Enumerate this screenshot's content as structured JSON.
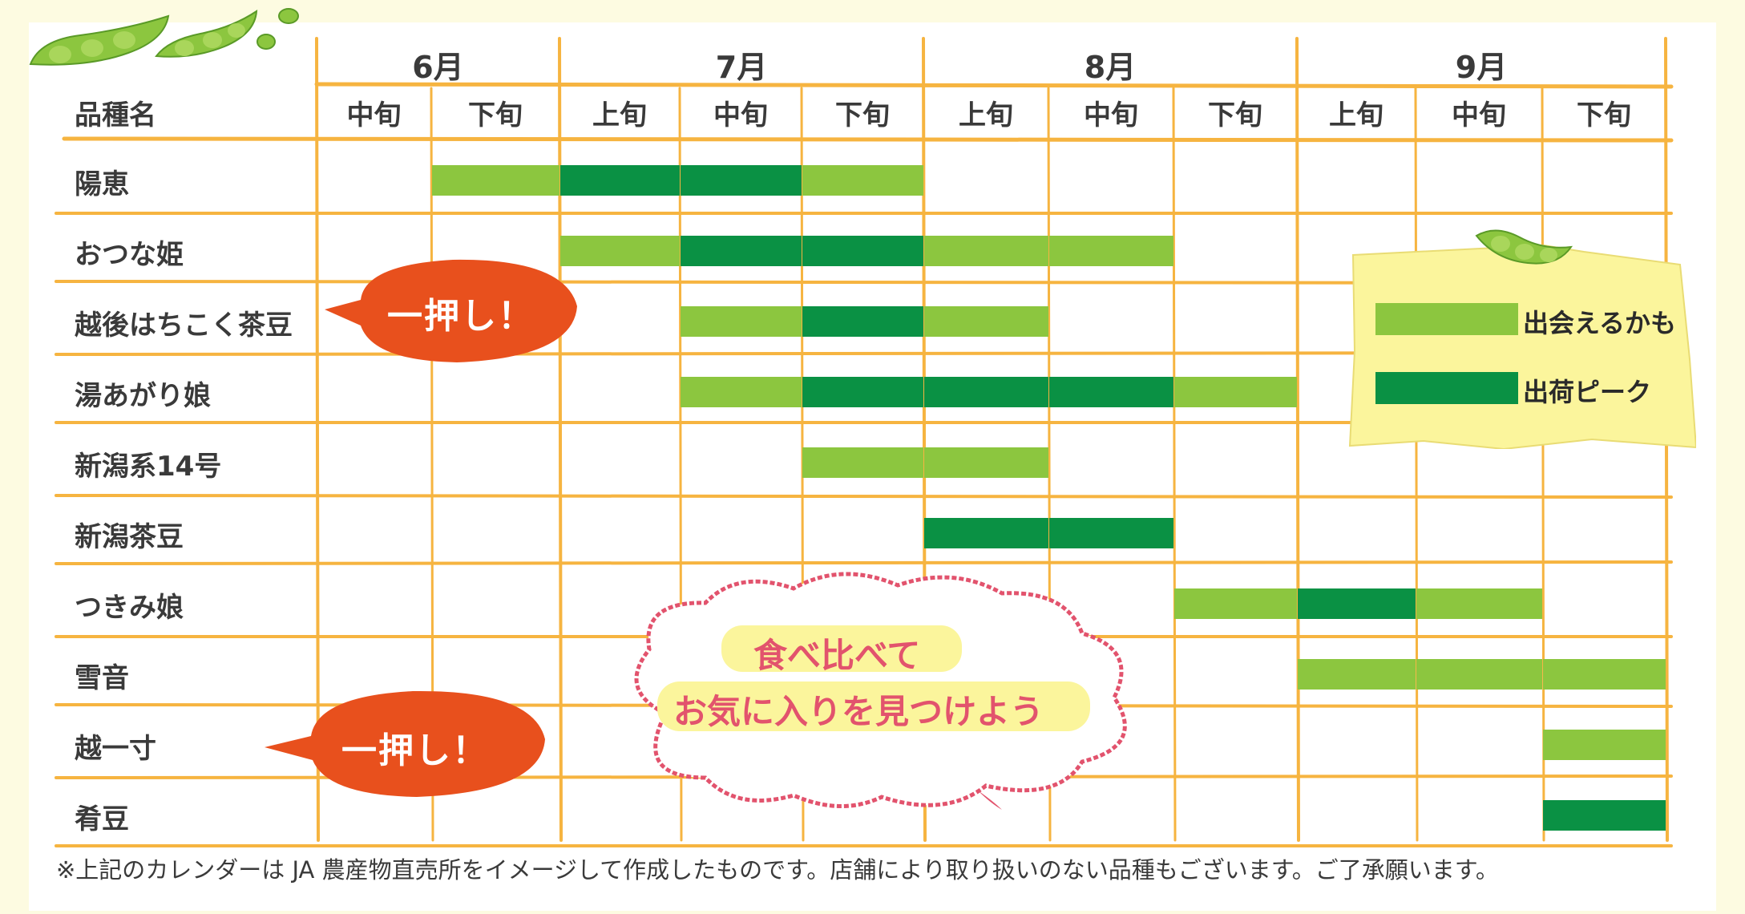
{
  "chart_data": {
    "type": "gantt",
    "months": [
      "6月",
      "7月",
      "8月",
      "9月"
    ],
    "decade_header": "品種名",
    "columns": [
      {
        "month": "6月",
        "decade": "中旬"
      },
      {
        "month": "6月",
        "decade": "下旬"
      },
      {
        "month": "7月",
        "decade": "上旬"
      },
      {
        "month": "7月",
        "decade": "中旬"
      },
      {
        "month": "7月",
        "decade": "下旬"
      },
      {
        "month": "8月",
        "decade": "上旬"
      },
      {
        "month": "8月",
        "decade": "中旬"
      },
      {
        "month": "8月",
        "decade": "下旬"
      },
      {
        "month": "9月",
        "decade": "上旬"
      },
      {
        "month": "9月",
        "decade": "中旬"
      },
      {
        "month": "9月",
        "decade": "下旬"
      }
    ],
    "rows": [
      {
        "variety": "陽恵",
        "cells": [
          0,
          1,
          2,
          2,
          1,
          0,
          0,
          0,
          0,
          0,
          0
        ]
      },
      {
        "variety": "おつな姫",
        "cells": [
          0,
          0,
          1,
          2,
          2,
          1,
          1,
          0,
          0,
          0,
          0
        ]
      },
      {
        "variety": "越後はちこく茶豆",
        "cells": [
          0,
          0,
          0,
          1,
          2,
          1,
          0,
          0,
          0,
          0,
          0
        ]
      },
      {
        "variety": "湯あがり娘",
        "cells": [
          0,
          0,
          0,
          1,
          2,
          2,
          2,
          1,
          0,
          0,
          0
        ]
      },
      {
        "variety": "新潟系14号",
        "cells": [
          0,
          0,
          0,
          0,
          1,
          1,
          0,
          0,
          0,
          0,
          0
        ]
      },
      {
        "variety": "新潟茶豆",
        "cells": [
          0,
          0,
          0,
          0,
          0,
          2,
          2,
          0,
          0,
          0,
          0
        ]
      },
      {
        "variety": "つきみ娘",
        "cells": [
          0,
          0,
          0,
          0,
          0,
          0,
          0,
          1,
          2,
          1,
          0
        ]
      },
      {
        "variety": "雪音",
        "cells": [
          0,
          0,
          0,
          0,
          0,
          0,
          0,
          0,
          1,
          1,
          1
        ]
      },
      {
        "variety": "越一寸",
        "cells": [
          0,
          0,
          0,
          0,
          0,
          0,
          0,
          0,
          0,
          0,
          1
        ]
      },
      {
        "variety": "肴豆",
        "cells": [
          0,
          0,
          0,
          0,
          0,
          0,
          0,
          0,
          0,
          0,
          2
        ]
      }
    ],
    "legend": [
      {
        "level": 1,
        "label": "出会えるかも",
        "color": "#8cc63f"
      },
      {
        "level": 2,
        "label": "出荷ピーク",
        "color": "#0a9144"
      }
    ]
  },
  "callouts": {
    "recommend_1": "一押し！",
    "recommend_2": "一押し！",
    "cloud_line1": "食べ比べて",
    "cloud_line2": "お気に入りを見つけよう"
  },
  "footnote": "※上記のカレンダーは JA 農産物直売所をイメージして作成したものです。店舗により取り扱いのない品種もございます。ご了承願います。",
  "colors": {
    "light_green": "#8cc63f",
    "dark_green": "#0a9144",
    "grid": "#f6b440",
    "bubble": "#e8501d",
    "cloud_border": "#e2536d",
    "sticky": "#fbf59c",
    "background": "#fdfbe1"
  }
}
